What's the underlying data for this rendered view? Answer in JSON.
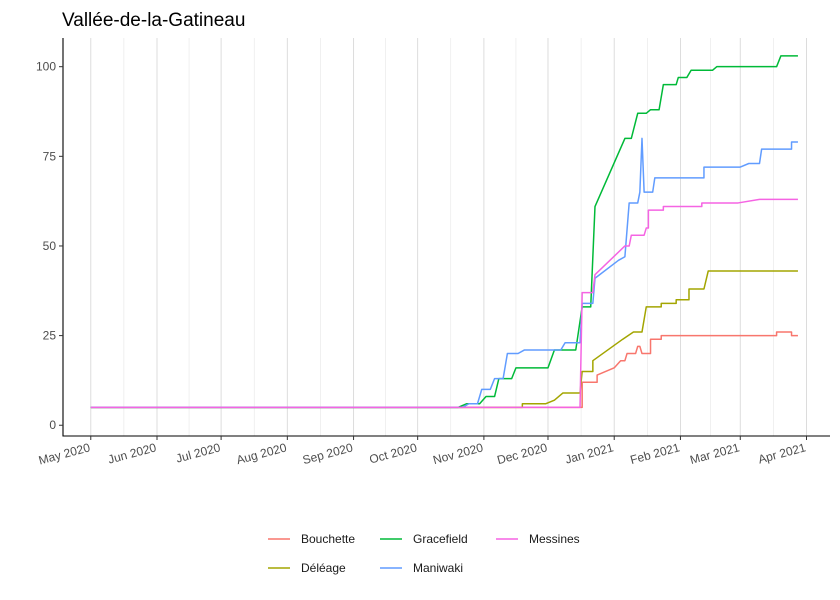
{
  "chart_data": {
    "type": "line",
    "title": "Vallée-de-la-Gatineau",
    "xlabel": "",
    "ylabel": "",
    "x_type": "date",
    "xlim": [
      "2020-04-18",
      "2021-04-12"
    ],
    "ylim": [
      -3,
      108
    ],
    "y_ticks": [
      0,
      25,
      50,
      75,
      100
    ],
    "x_ticks": [
      {
        "date": "2020-05-01",
        "label": "May 2020"
      },
      {
        "date": "2020-06-01",
        "label": "Jun 2020"
      },
      {
        "date": "2020-07-01",
        "label": "Jul 2020"
      },
      {
        "date": "2020-08-01",
        "label": "Aug 2020"
      },
      {
        "date": "2020-09-01",
        "label": "Sep 2020"
      },
      {
        "date": "2020-10-01",
        "label": "Oct 2020"
      },
      {
        "date": "2020-11-01",
        "label": "Nov 2020"
      },
      {
        "date": "2020-12-01",
        "label": "Dec 2020"
      },
      {
        "date": "2021-01-01",
        "label": "Jan 2021"
      },
      {
        "date": "2021-02-01",
        "label": "Feb 2021"
      },
      {
        "date": "2021-03-01",
        "label": "Mar 2021"
      },
      {
        "date": "2021-04-01",
        "label": "Apr 2021"
      }
    ],
    "grid": {
      "vertical": true,
      "horizontal": false
    },
    "legend_position": "bottom",
    "series": [
      {
        "name": "Bouchette",
        "color": "#F8766D",
        "points": [
          [
            "2020-05-01",
            5
          ],
          [
            "2020-12-17",
            5
          ],
          [
            "2020-12-17",
            12
          ],
          [
            "2020-12-24",
            12
          ],
          [
            "2020-12-24",
            14
          ],
          [
            "2021-01-01",
            16
          ],
          [
            "2021-01-04",
            18
          ],
          [
            "2021-01-06",
            18
          ],
          [
            "2021-01-07",
            20
          ],
          [
            "2021-01-10",
            20
          ],
          [
            "2021-01-11",
            20
          ],
          [
            "2021-01-12",
            22
          ],
          [
            "2021-01-13",
            22
          ],
          [
            "2021-01-14",
            20
          ],
          [
            "2021-01-18",
            20
          ],
          [
            "2021-01-18",
            24
          ],
          [
            "2021-01-23",
            24
          ],
          [
            "2021-01-23",
            25
          ],
          [
            "2021-03-18",
            25
          ],
          [
            "2021-03-18",
            26
          ],
          [
            "2021-03-25",
            26
          ],
          [
            "2021-03-25",
            25
          ],
          [
            "2021-03-28",
            25
          ]
        ]
      },
      {
        "name": "Déléage",
        "color": "#A3A500",
        "points": [
          [
            "2020-05-01",
            5
          ],
          [
            "2020-11-19",
            5
          ],
          [
            "2020-11-19",
            6
          ],
          [
            "2020-11-30",
            6
          ],
          [
            "2020-12-04",
            7
          ],
          [
            "2020-12-08",
            9
          ],
          [
            "2020-12-16",
            9
          ],
          [
            "2020-12-17",
            15
          ],
          [
            "2020-12-22",
            15
          ],
          [
            "2020-12-22",
            18
          ],
          [
            "2021-01-05",
            24
          ],
          [
            "2021-01-10",
            26
          ],
          [
            "2021-01-14",
            26
          ],
          [
            "2021-01-16",
            33
          ],
          [
            "2021-01-23",
            33
          ],
          [
            "2021-01-23",
            34
          ],
          [
            "2021-01-30",
            34
          ],
          [
            "2021-01-30",
            35
          ],
          [
            "2021-02-05",
            35
          ],
          [
            "2021-02-05",
            38
          ],
          [
            "2021-02-12",
            38
          ],
          [
            "2021-02-14",
            43
          ],
          [
            "2021-03-28",
            43
          ]
        ]
      },
      {
        "name": "Gracefield",
        "color": "#00BA38",
        "points": [
          [
            "2020-05-01",
            5
          ],
          [
            "2020-10-20",
            5
          ],
          [
            "2020-10-24",
            6
          ],
          [
            "2020-10-30",
            6
          ],
          [
            "2020-11-02",
            8
          ],
          [
            "2020-11-06",
            8
          ],
          [
            "2020-11-08",
            13
          ],
          [
            "2020-11-14",
            13
          ],
          [
            "2020-11-16",
            16
          ],
          [
            "2020-12-01",
            16
          ],
          [
            "2020-12-04",
            21
          ],
          [
            "2020-12-14",
            21
          ],
          [
            "2020-12-17",
            33
          ],
          [
            "2020-12-21",
            33
          ],
          [
            "2020-12-23",
            61
          ],
          [
            "2021-01-06",
            80
          ],
          [
            "2021-01-09",
            80
          ],
          [
            "2021-01-12",
            87
          ],
          [
            "2021-01-16",
            87
          ],
          [
            "2021-01-18",
            88
          ],
          [
            "2021-01-22",
            88
          ],
          [
            "2021-01-24",
            95
          ],
          [
            "2021-01-30",
            95
          ],
          [
            "2021-01-31",
            97
          ],
          [
            "2021-02-04",
            97
          ],
          [
            "2021-02-06",
            99
          ],
          [
            "2021-02-16",
            99
          ],
          [
            "2021-02-18",
            100
          ],
          [
            "2021-03-18",
            100
          ],
          [
            "2021-03-20",
            103
          ],
          [
            "2021-03-28",
            103
          ]
        ]
      },
      {
        "name": "Maniwaki",
        "color": "#619CFF",
        "points": [
          [
            "2020-05-01",
            5
          ],
          [
            "2020-10-22",
            5
          ],
          [
            "2020-10-25",
            6
          ],
          [
            "2020-10-29",
            6
          ],
          [
            "2020-10-31",
            10
          ],
          [
            "2020-11-04",
            10
          ],
          [
            "2020-11-06",
            13
          ],
          [
            "2020-11-10",
            13
          ],
          [
            "2020-11-12",
            20
          ],
          [
            "2020-11-17",
            20
          ],
          [
            "2020-11-20",
            21
          ],
          [
            "2020-12-07",
            21
          ],
          [
            "2020-12-09",
            23
          ],
          [
            "2020-12-16",
            23
          ],
          [
            "2020-12-17",
            34
          ],
          [
            "2020-12-22",
            34
          ],
          [
            "2020-12-23",
            41
          ],
          [
            "2021-01-03",
            46
          ],
          [
            "2021-01-06",
            47
          ],
          [
            "2021-01-08",
            62
          ],
          [
            "2021-01-12",
            62
          ],
          [
            "2021-01-13",
            65
          ],
          [
            "2021-01-14",
            80
          ],
          [
            "2021-01-15",
            65
          ],
          [
            "2021-01-19",
            65
          ],
          [
            "2021-01-20",
            69
          ],
          [
            "2021-02-12",
            69
          ],
          [
            "2021-02-12",
            72
          ],
          [
            "2021-03-01",
            72
          ],
          [
            "2021-03-05",
            73
          ],
          [
            "2021-03-10",
            73
          ],
          [
            "2021-03-11",
            77
          ],
          [
            "2021-03-25",
            77
          ],
          [
            "2021-03-25",
            79
          ],
          [
            "2021-03-28",
            79
          ]
        ]
      },
      {
        "name": "Messines",
        "color": "#F564E3",
        "points": [
          [
            "2020-05-01",
            5
          ],
          [
            "2020-12-16",
            5
          ],
          [
            "2020-12-17",
            37
          ],
          [
            "2020-12-22",
            37
          ],
          [
            "2020-12-23",
            42
          ],
          [
            "2021-01-06",
            50
          ],
          [
            "2021-01-08",
            50
          ],
          [
            "2021-01-09",
            53
          ],
          [
            "2021-01-15",
            53
          ],
          [
            "2021-01-16",
            55
          ],
          [
            "2021-01-17",
            55
          ],
          [
            "2021-01-17",
            60
          ],
          [
            "2021-01-24",
            60
          ],
          [
            "2021-01-24",
            61
          ],
          [
            "2021-02-11",
            61
          ],
          [
            "2021-02-11",
            62
          ],
          [
            "2021-02-28",
            62
          ],
          [
            "2021-03-10",
            63
          ],
          [
            "2021-03-28",
            63
          ]
        ]
      }
    ]
  }
}
